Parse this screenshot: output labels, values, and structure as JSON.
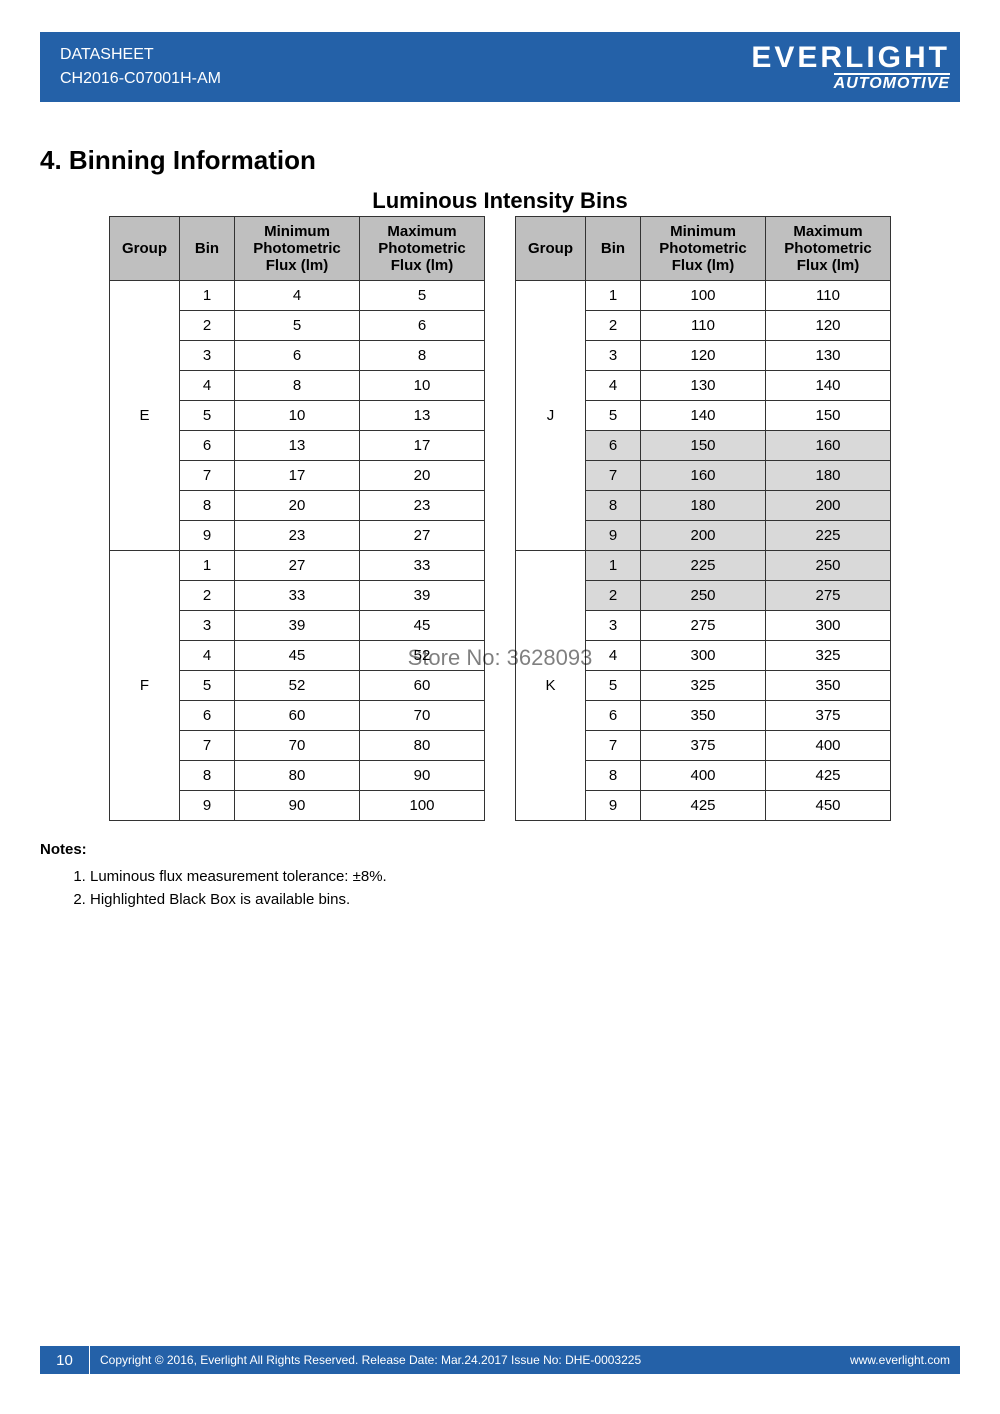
{
  "header": {
    "doc_type": "DATASHEET",
    "part_no": "CH2016-C07001H-AM",
    "brand": "EVERLIGHT",
    "brand_sub": "AUTOMOTIVE",
    "brand_color": "#2461a8"
  },
  "section": {
    "number_title": "4. Binning Information",
    "table_title": "Luminous Intensity Bins"
  },
  "table_headers": {
    "group": "Group",
    "bin": "Bin",
    "min": "Minimum Photometric Flux (lm)",
    "max": "Maximum Photometric Flux (lm)"
  },
  "left_groups": [
    {
      "name": "E",
      "rows": [
        {
          "bin": "1",
          "min": "4",
          "max": "5",
          "hl": false
        },
        {
          "bin": "2",
          "min": "5",
          "max": "6",
          "hl": false
        },
        {
          "bin": "3",
          "min": "6",
          "max": "8",
          "hl": false
        },
        {
          "bin": "4",
          "min": "8",
          "max": "10",
          "hl": false
        },
        {
          "bin": "5",
          "min": "10",
          "max": "13",
          "hl": false
        },
        {
          "bin": "6",
          "min": "13",
          "max": "17",
          "hl": false
        },
        {
          "bin": "7",
          "min": "17",
          "max": "20",
          "hl": false
        },
        {
          "bin": "8",
          "min": "20",
          "max": "23",
          "hl": false
        },
        {
          "bin": "9",
          "min": "23",
          "max": "27",
          "hl": false
        }
      ]
    },
    {
      "name": "F",
      "rows": [
        {
          "bin": "1",
          "min": "27",
          "max": "33",
          "hl": false
        },
        {
          "bin": "2",
          "min": "33",
          "max": "39",
          "hl": false
        },
        {
          "bin": "3",
          "min": "39",
          "max": "45",
          "hl": false
        },
        {
          "bin": "4",
          "min": "45",
          "max": "52",
          "hl": false
        },
        {
          "bin": "5",
          "min": "52",
          "max": "60",
          "hl": false
        },
        {
          "bin": "6",
          "min": "60",
          "max": "70",
          "hl": false
        },
        {
          "bin": "7",
          "min": "70",
          "max": "80",
          "hl": false
        },
        {
          "bin": "8",
          "min": "80",
          "max": "90",
          "hl": false
        },
        {
          "bin": "9",
          "min": "90",
          "max": "100",
          "hl": false
        }
      ]
    }
  ],
  "right_groups": [
    {
      "name": "J",
      "rows": [
        {
          "bin": "1",
          "min": "100",
          "max": "110",
          "hl": false
        },
        {
          "bin": "2",
          "min": "110",
          "max": "120",
          "hl": false
        },
        {
          "bin": "3",
          "min": "120",
          "max": "130",
          "hl": false
        },
        {
          "bin": "4",
          "min": "130",
          "max": "140",
          "hl": false
        },
        {
          "bin": "5",
          "min": "140",
          "max": "150",
          "hl": false
        },
        {
          "bin": "6",
          "min": "150",
          "max": "160",
          "hl": true
        },
        {
          "bin": "7",
          "min": "160",
          "max": "180",
          "hl": true
        },
        {
          "bin": "8",
          "min": "180",
          "max": "200",
          "hl": true
        },
        {
          "bin": "9",
          "min": "200",
          "max": "225",
          "hl": true
        }
      ]
    },
    {
      "name": "K",
      "rows": [
        {
          "bin": "1",
          "min": "225",
          "max": "250",
          "hl": true
        },
        {
          "bin": "2",
          "min": "250",
          "max": "275",
          "hl": true
        },
        {
          "bin": "3",
          "min": "275",
          "max": "300",
          "hl": false
        },
        {
          "bin": "4",
          "min": "300",
          "max": "325",
          "hl": false
        },
        {
          "bin": "5",
          "min": "325",
          "max": "350",
          "hl": false
        },
        {
          "bin": "6",
          "min": "350",
          "max": "375",
          "hl": false
        },
        {
          "bin": "7",
          "min": "375",
          "max": "400",
          "hl": false
        },
        {
          "bin": "8",
          "min": "400",
          "max": "425",
          "hl": false
        },
        {
          "bin": "9",
          "min": "425",
          "max": "450",
          "hl": false
        }
      ]
    }
  ],
  "notes": {
    "title": "Notes:",
    "items": [
      "Luminous flux measurement tolerance: ±8%.",
      "Highlighted Black Box is available bins."
    ]
  },
  "watermark": "Store No: 3628093",
  "footer": {
    "page": "10",
    "copyright": "Copyright © 2016, Everlight All Rights Reserved. Release Date: Mar.24.2017   Issue No: DHE-0003225",
    "url": "www.everlight.com"
  },
  "colors": {
    "header_bg": "#2461a8",
    "th_bg": "#bfbfbf",
    "hl_bg": "#d9d9d9",
    "border": "#333333"
  }
}
